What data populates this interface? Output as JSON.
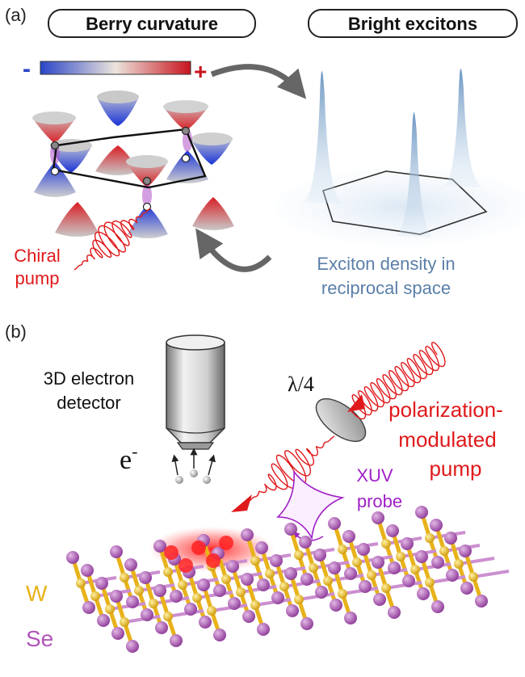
{
  "panel_a": {
    "label": "(a)",
    "box_left": "Berry curvature",
    "box_right": "Bright excitons",
    "scale_minus": "-",
    "scale_plus": "+",
    "chiral_line1": "Chiral",
    "chiral_line2": "pump",
    "density_line1": "Exciton density in",
    "density_line2": "reciprocal space"
  },
  "panel_b": {
    "label": "(b)",
    "detector_line1": "3D electron",
    "detector_line2": "detector",
    "electron": "e",
    "electron_sup": "-",
    "waveplate": "λ/4",
    "pump_line1": "polarization-",
    "pump_line2": "modulated",
    "pump_line3": "pump",
    "probe_line1": "XUV",
    "probe_line2": "probe",
    "element_w": "W",
    "element_se": "Se"
  },
  "colors": {
    "red": "#e0191b",
    "blue": "#3c52c4",
    "purple": "#a020c8",
    "gold": "#e8b21a",
    "se": "#b055b8",
    "exciton_text": "#5b7fa8"
  }
}
